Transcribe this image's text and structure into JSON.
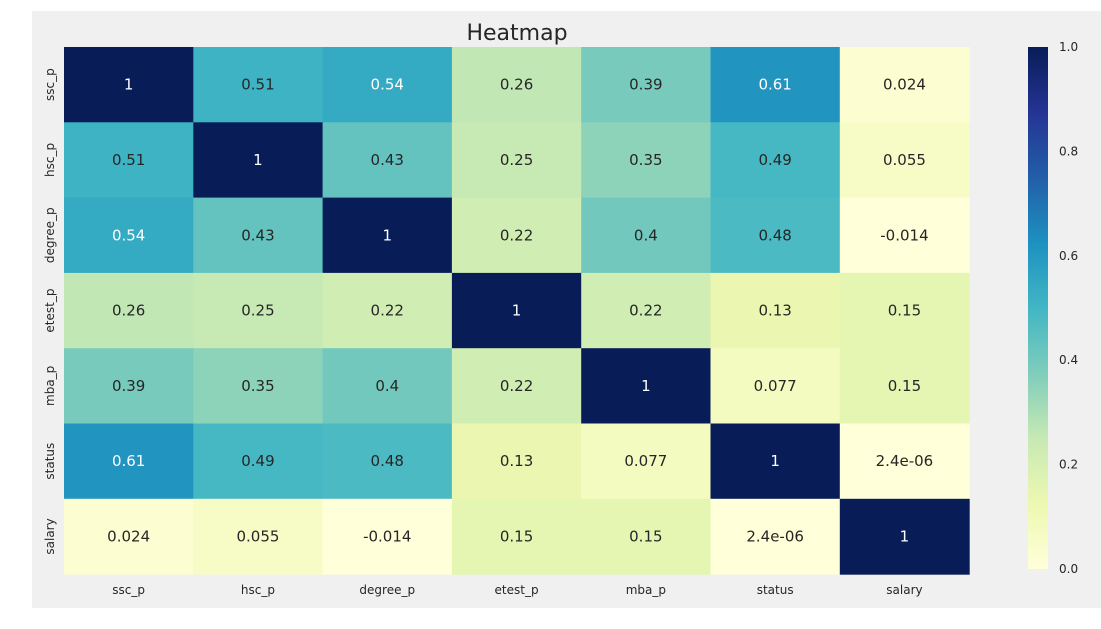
{
  "chart_data": {
    "type": "heatmap",
    "title": "Heatmap",
    "xlabels": [
      "ssc_p",
      "hsc_p",
      "degree_p",
      "etest_p",
      "mba_p",
      "status",
      "salary"
    ],
    "ylabels": [
      "ssc_p",
      "hsc_p",
      "degree_p",
      "etest_p",
      "mba_p",
      "status",
      "salary"
    ],
    "values": [
      [
        1,
        0.51,
        0.54,
        0.26,
        0.39,
        0.61,
        0.024
      ],
      [
        0.51,
        1,
        0.43,
        0.25,
        0.35,
        0.49,
        0.055
      ],
      [
        0.54,
        0.43,
        1,
        0.22,
        0.4,
        0.48,
        -0.014
      ],
      [
        0.26,
        0.25,
        0.22,
        1,
        0.22,
        0.13,
        0.15
      ],
      [
        0.39,
        0.35,
        0.4,
        0.22,
        1,
        0.077,
        0.15
      ],
      [
        0.61,
        0.49,
        0.48,
        0.13,
        0.077,
        1,
        2.4e-06
      ],
      [
        0.024,
        0.055,
        -0.014,
        0.15,
        0.15,
        2.4e-06,
        1
      ]
    ],
    "annotations": [
      [
        "1",
        "0.51",
        "0.54",
        "0.26",
        "0.39",
        "0.61",
        "0.024"
      ],
      [
        "0.51",
        "1",
        "0.43",
        "0.25",
        "0.35",
        "0.49",
        "0.055"
      ],
      [
        "0.54",
        "0.43",
        "1",
        "0.22",
        "0.4",
        "0.48",
        "-0.014"
      ],
      [
        "0.26",
        "0.25",
        "0.22",
        "1",
        "0.22",
        "0.13",
        "0.15"
      ],
      [
        "0.39",
        "0.35",
        "0.4",
        "0.22",
        "1",
        "0.077",
        "0.15"
      ],
      [
        "0.61",
        "0.49",
        "0.48",
        "0.13",
        "0.077",
        "1",
        "2.4e-06"
      ],
      [
        "0.024",
        "0.055",
        "-0.014",
        "0.15",
        "0.15",
        "2.4e-06",
        "1"
      ]
    ],
    "colormap": "YlGnBu",
    "colormap_stops": [
      "#ffffd9",
      "#edf8b1",
      "#c7e9b4",
      "#7fcdbb",
      "#41b6c4",
      "#1d91c0",
      "#225ea8",
      "#253494",
      "#081d58"
    ],
    "vmin": 0.0,
    "vmax": 1.0,
    "colorbar_ticks": [
      "0.0",
      "0.2",
      "0.4",
      "0.6",
      "0.8",
      "1.0"
    ],
    "grid": false
  }
}
